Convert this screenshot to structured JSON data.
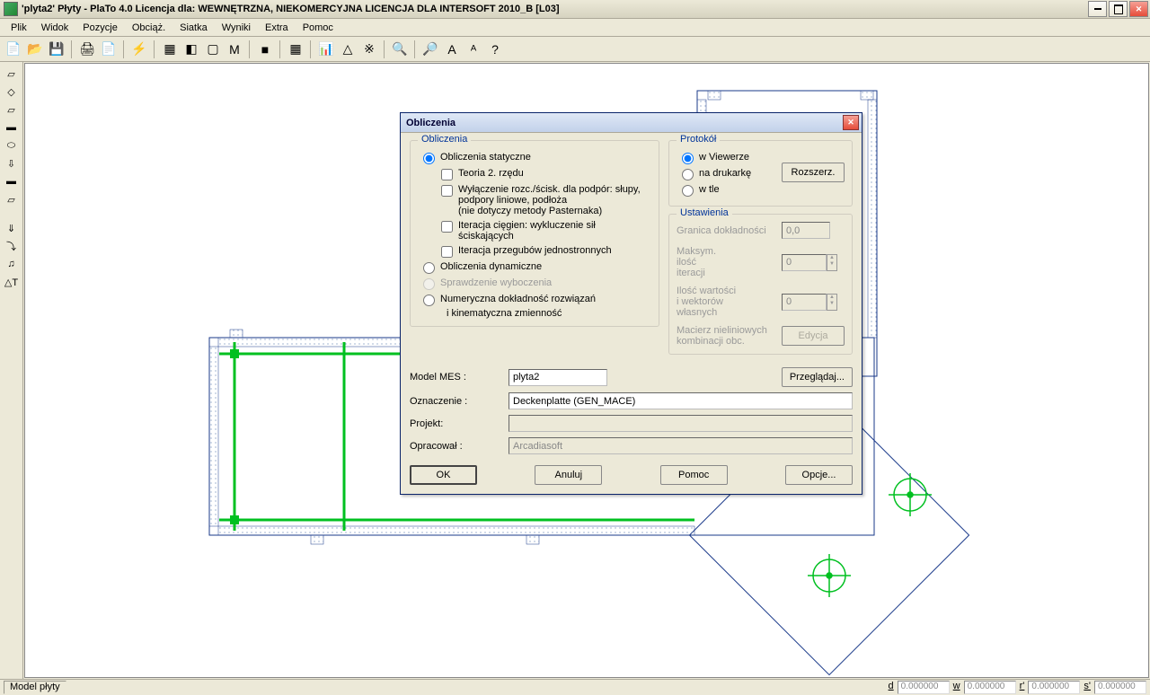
{
  "window": {
    "title": "'plyta2' Płyty   - PlaTo 4.0  Licencja dla: WEWNĘTRZNA, NIEKOMERCYJNA LICENCJA DLA INTERSOFT 2010_B [L03]"
  },
  "menu": [
    "Plik",
    "Widok",
    "Pozycje",
    "Obciąż.",
    "Siatka",
    "Wyniki",
    "Extra",
    "Pomoc"
  ],
  "toolbar_icons": [
    "📄",
    "📂",
    "💾",
    "🖨",
    "📄",
    "⚡",
    "▦",
    "◧",
    "▢",
    "M",
    "■",
    "▦",
    "📊",
    "△",
    "※",
    "🔍",
    "🔎",
    "A",
    "ᴬ",
    "?"
  ],
  "left_icons": [
    "▱",
    "◇",
    "▱",
    "▬",
    "⬭",
    "⇩",
    "▬",
    "▱",
    "",
    "⇓",
    "⤵",
    "♫",
    "△T"
  ],
  "status": {
    "left": "Model płyty",
    "labels": [
      "d",
      "w",
      "r'",
      "s'"
    ],
    "value": "0.000000"
  },
  "dialog": {
    "title": "Obliczenia",
    "obliczenia": {
      "legend": "Obliczenia",
      "opt_static": "Obliczenia statyczne",
      "teoria": "Teoria 2. rzędu",
      "wylaczenie": "Wyłączenie rozc./ścisk. dla podpór: słupy, podpory liniowe, podłoża\n(nie dotyczy metody Pasternaka)",
      "iter_ciegien": "Iteracja cięgien: wykluczenie sił ściskających",
      "iter_przegubow": "Iteracja przegubów jednostronnych",
      "opt_dyn": "Obliczenia dynamiczne",
      "opt_wyb": "Sprawdzenie wyboczenia",
      "opt_num": "Numeryczna dokładność rozwiązań",
      "opt_num_sub": "i kinematyczna zmienność"
    },
    "protokol": {
      "legend": "Protokół",
      "viewer": "w Viewerze",
      "drukarke": "na drukarkę",
      "wtle": "w tle",
      "rozszerz": "Rozszerz."
    },
    "ustawienia": {
      "legend": "Ustawienia",
      "granica": "Granica dokładności",
      "granica_val": "0,0",
      "maksym": "Maksym.\nilość\niteracji",
      "maksym_val": "0",
      "ilosc": "Ilość wartości\ni wektorów\nwłasnych",
      "ilosc_val": "0",
      "macierz": "Macierz nieliniowych\nkombinacji obc.",
      "edycja": "Edycja"
    },
    "form": {
      "model": "Model MES :",
      "model_val": "plyta2",
      "przegladaj": "Przeglądaj...",
      "oznaczenie": "Oznaczenie :",
      "oznaczenie_val": "Deckenplatte (GEN_MACE)",
      "projekt": "Projekt:",
      "projekt_val": "",
      "opracowal": "Opracował :",
      "opracowal_val": "Arcadiasoft"
    },
    "buttons": {
      "ok": "OK",
      "anuluj": "Anuluj",
      "pomoc": "Pomoc",
      "opcje": "Opcje..."
    }
  },
  "colors": {
    "structure_stroke": "#1a3a8a",
    "green": "#00c020",
    "hatch": "#7a8aaa"
  }
}
